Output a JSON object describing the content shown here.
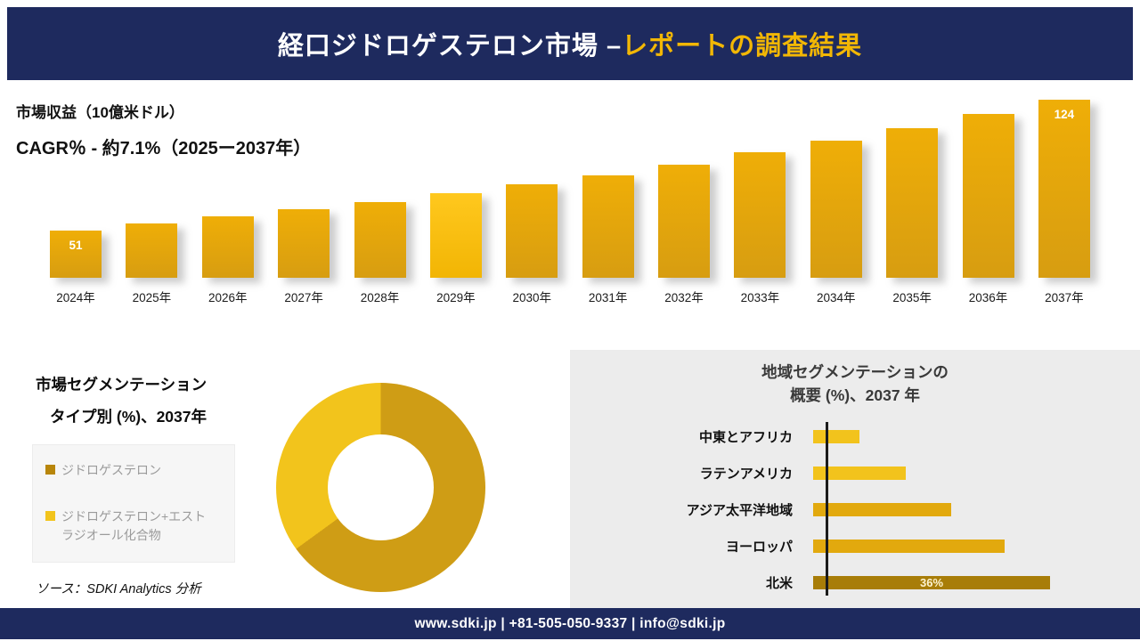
{
  "header": {
    "title_main": "経口ジドロゲステロン市場 –",
    "title_accent": "レポートの調査結果",
    "bg_color": "#1e2a5e",
    "accent_color": "#f2b705"
  },
  "revenue_chart": {
    "metric_label": "市場収益（10億米ドル）",
    "cagr_label": "CAGR％ - 約7.1%（2025ー2037年）"
  },
  "type_segmentation": {
    "title_line1": "市場セグメンテーション",
    "title_line2": "タイプ別 (%)、2037年",
    "legend": [
      {
        "label_lines": [
          "ジドロゲステロン"
        ],
        "color": "#b8860b"
      },
      {
        "label_lines": [
          "ジドロゲステロン+エスト",
          "ラジオール化合物"
        ],
        "color": "#f2c41c"
      }
    ]
  },
  "region_chart": {
    "title_line1": "地域セグメンテーションの",
    "title_line2": "概要 (%)、2037 年"
  },
  "source_note": "ソース：SDKI Analytics 分析",
  "footer": {
    "contact_line": "www.sdki.jp | +81-505-050-9337 | info@sdki.jp"
  },
  "chart_data": [
    {
      "type": "bar",
      "title": "市場収益（10億米ドル）",
      "subtitle": "CAGR％ - 約7.1%（2025ー2037年）",
      "categories": [
        "2024年",
        "2025年",
        "2026年",
        "2027年",
        "2028年",
        "2029年",
        "2030年",
        "2031年",
        "2032年",
        "2033年",
        "2034年",
        "2035年",
        "2036年",
        "2037年"
      ],
      "values": [
        51,
        55,
        59,
        63,
        67,
        72,
        77,
        82,
        88,
        95,
        101,
        108,
        116,
        124
      ],
      "labeled_values": {
        "2024年": "51",
        "2037年": "124"
      },
      "highlight_year": "2029年",
      "bar_color": "#e3a90c",
      "ylim": [
        0,
        130
      ],
      "grid": false,
      "legend_position": "none"
    },
    {
      "type": "pie",
      "donut": true,
      "title": "市場セグメンテーション タイプ別 (%)、2037年",
      "segments": [
        {
          "label": "ジドロゲステロン",
          "value": 65,
          "color": "#cf9d15"
        },
        {
          "label": "ジドロゲステロン+エストラジオール化合物",
          "value": 35,
          "color": "#f2c41c"
        }
      ]
    },
    {
      "type": "bar",
      "orientation": "horizontal",
      "title": "地域セグメンテーションの概要 (%)、2037 年",
      "categories": [
        "中東とアフリカ",
        "ラテンアメリカ",
        "アジア太平洋地域",
        "ヨーロッパ",
        "北米"
      ],
      "values": [
        7,
        14,
        21,
        29,
        36
      ],
      "value_labels": [
        "",
        "",
        "",
        "",
        "36%"
      ],
      "bar_colors": [
        "#f2c31c",
        "#f2c31c",
        "#e2a90e",
        "#e2a90e",
        "#a87d08"
      ],
      "grid": false
    }
  ]
}
